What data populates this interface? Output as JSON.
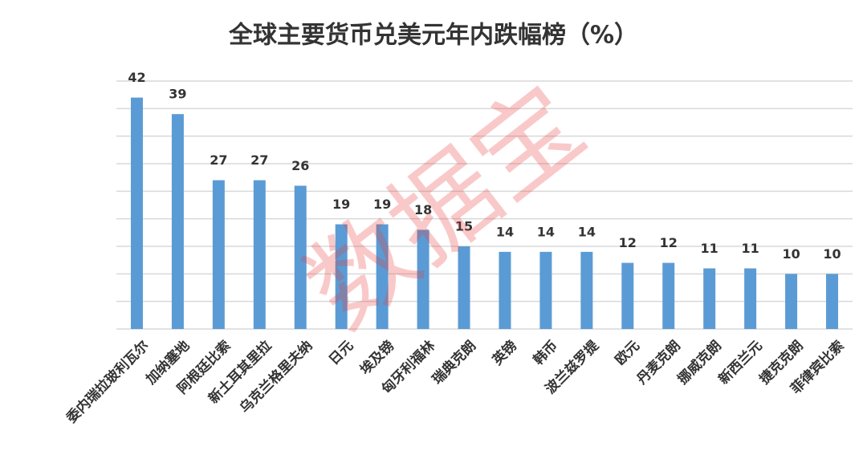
{
  "chart_data": {
    "type": "bar",
    "title": "全球主要货币兑美元年内跌幅榜（%）",
    "watermark": "数据宝",
    "categories": [
      "委内瑞拉玻利瓦尔",
      "加纳塞地",
      "阿根廷比索",
      "新土耳其里拉",
      "乌克兰格里夫纳",
      "日元",
      "埃及镑",
      "匈牙利福林",
      "瑞典克朗",
      "英镑",
      "韩币",
      "波兰兹罗提",
      "欧元",
      "丹麦克朗",
      "挪威克朗",
      "新西兰元",
      "捷克克朗",
      "菲律宾比索"
    ],
    "values": [
      42,
      39,
      27,
      27,
      26,
      19,
      19,
      18,
      15,
      14,
      14,
      14,
      12,
      12,
      11,
      11,
      10,
      10
    ],
    "color": "#5b9bd5",
    "ylim": [
      0,
      45
    ],
    "yticks": [
      0,
      5,
      10,
      15,
      20,
      25,
      30,
      35,
      40,
      45
    ],
    "grid": true
  }
}
